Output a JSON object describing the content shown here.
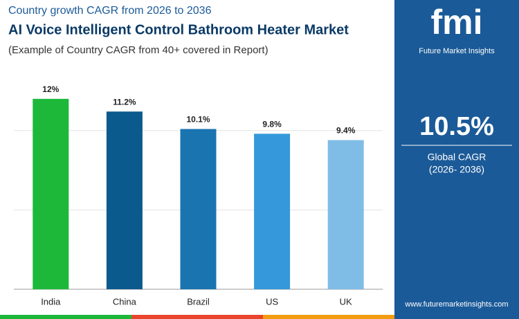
{
  "chart_data": {
    "type": "bar",
    "subtitle": "Country growth CAGR from 2026 to 2036",
    "title": "AI Voice Intelligent Control Bathroom Heater Market",
    "note": "(Example of Country CAGR from 40+ covered in Report)",
    "categories": [
      "India",
      "China",
      "Brazil",
      "US",
      "UK"
    ],
    "values": [
      12,
      11.2,
      10.1,
      9.8,
      9.4
    ],
    "value_labels": [
      "12%",
      "11.2%",
      "10.1%",
      "9.8%",
      "9.4%"
    ],
    "colors": [
      "#1db83a",
      "#0b5a8e",
      "#1a74b0",
      "#3498db",
      "#7fbde6"
    ],
    "ylim": [
      0,
      14
    ],
    "yticks": [
      0,
      5,
      10
    ],
    "grid": true
  },
  "sidebar": {
    "logo": "fmi",
    "brand": "Future Market Insights",
    "value": "10.5%",
    "label": "Global CAGR",
    "period": "(2026- 2036)",
    "website": "www.futuremarketinsights.com"
  }
}
